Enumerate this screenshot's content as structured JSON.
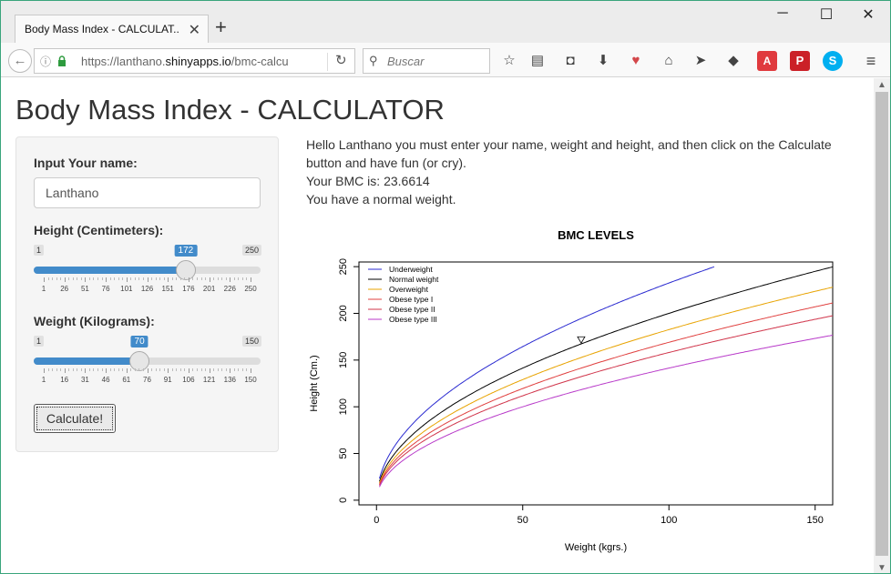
{
  "browser": {
    "tab_title": "Body Mass Index - CALCULAT...",
    "url_prefix": "https://lanthano.",
    "url_host": "shinyapps.io",
    "url_path": "/bmc-calcu",
    "search_placeholder": "Buscar"
  },
  "app": {
    "title": "Body Mass Index - CALCULATOR",
    "name_label": "Input Your name:",
    "name_value": "Lanthano",
    "height_label": "Height (Centimeters):",
    "height": {
      "min": 1,
      "max": 250,
      "value": 172,
      "min_label": "1",
      "max_label": "250",
      "value_label": "172",
      "ticks": [
        "1",
        "26",
        "51",
        "76",
        "101",
        "126",
        "151",
        "176",
        "201",
        "226",
        "250"
      ]
    },
    "weight_label": "Weight (Kilograms):",
    "weight": {
      "min": 1,
      "max": 150,
      "value": 70,
      "min_label": "1",
      "max_label": "150",
      "value_label": "70",
      "ticks": [
        "1",
        "16",
        "31",
        "46",
        "61",
        "76",
        "91",
        "106",
        "121",
        "136",
        "150"
      ]
    },
    "calc_button": "Calculate!",
    "message_line1": "Hello Lanthano you must enter your name, weight and height, and then click on the Calculate button and have fun (or cry).",
    "message_line2": "Your BMC is: 23.6614",
    "message_line3": "You have a normal weight."
  },
  "chart_data": {
    "type": "line",
    "title": "BMC LEVELS",
    "xlabel": "Weight (kgrs.)",
    "ylabel": "Height (Cm.)",
    "xlim": [
      -6,
      156
    ],
    "ylim": [
      -5,
      255
    ],
    "xticks": [
      0,
      50,
      100,
      150
    ],
    "yticks": [
      0,
      50,
      100,
      150,
      200,
      250
    ],
    "legend_position": "top-left",
    "series": [
      {
        "name": "Underweight",
        "color": "#2a2ad0",
        "bmi": 18.5
      },
      {
        "name": "Normal weight",
        "color": "#000000",
        "bmi": 25
      },
      {
        "name": "Overweight",
        "color": "#e8a300",
        "bmi": 30
      },
      {
        "name": "Obese type I",
        "color": "#e0403f",
        "bmi": 35
      },
      {
        "name": "Obese type II",
        "color": "#d0344a",
        "bmi": 40
      },
      {
        "name": "Obese type III",
        "color": "#b83ac9",
        "bmi": 50
      }
    ],
    "marker": {
      "x": 70,
      "y": 172
    }
  }
}
